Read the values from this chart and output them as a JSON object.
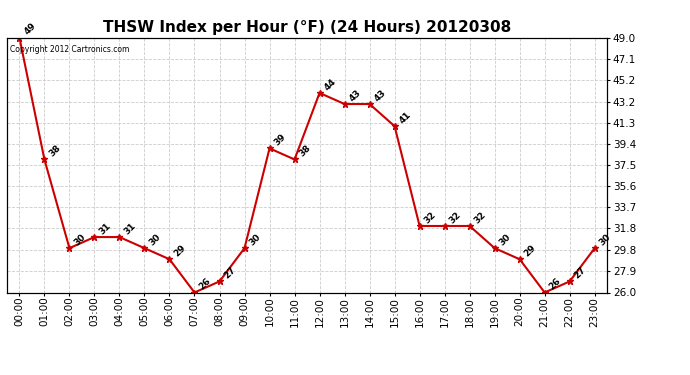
{
  "title": "THSW Index per Hour (°F) (24 Hours) 20120308",
  "copyright_text": "Copyright 2012 Cartronics.com",
  "hours": [
    "00:00",
    "01:00",
    "02:00",
    "03:00",
    "04:00",
    "05:00",
    "06:00",
    "07:00",
    "08:00",
    "09:00",
    "10:00",
    "11:00",
    "12:00",
    "13:00",
    "14:00",
    "15:00",
    "16:00",
    "17:00",
    "18:00",
    "19:00",
    "20:00",
    "21:00",
    "22:00",
    "23:00"
  ],
  "values": [
    49,
    38,
    30,
    31,
    31,
    30,
    29,
    26,
    27,
    30,
    39,
    38,
    44,
    43,
    43,
    41,
    32,
    32,
    32,
    30,
    29,
    26,
    27,
    30
  ],
  "line_color": "#cc0000",
  "marker": "*",
  "marker_color": "#cc0000",
  "marker_size": 5,
  "ylim_min": 26.0,
  "ylim_max": 49.0,
  "yticks": [
    26.0,
    27.9,
    29.8,
    31.8,
    33.7,
    35.6,
    37.5,
    39.4,
    41.3,
    43.2,
    45.2,
    47.1,
    49.0
  ],
  "ytick_labels": [
    "26.0",
    "27.9",
    "29.8",
    "31.8",
    "33.7",
    "35.6",
    "37.5",
    "39.4",
    "41.3",
    "43.2",
    "45.2",
    "47.1",
    "49.0"
  ],
  "grid_color": "#cccccc",
  "bg_color": "#ffffff",
  "title_fontsize": 11,
  "label_fontsize": 7.5,
  "annotation_fontsize": 6.5,
  "copyright_fontsize": 5.5
}
